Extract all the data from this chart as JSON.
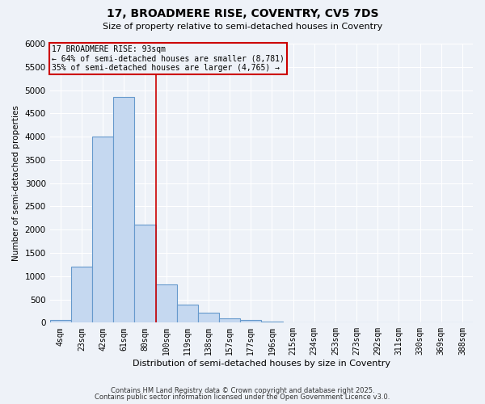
{
  "title1": "17, BROADMERE RISE, COVENTRY, CV5 7DS",
  "title2": "Size of property relative to semi-detached houses in Coventry",
  "xlabel": "Distribution of semi-detached houses by size in Coventry",
  "ylabel": "Number of semi-detached properties",
  "bar_labels": [
    "4sqm",
    "23sqm",
    "42sqm",
    "61sqm",
    "80sqm",
    "100sqm",
    "119sqm",
    "138sqm",
    "157sqm",
    "177sqm",
    "196sqm",
    "215sqm",
    "234sqm",
    "253sqm",
    "273sqm",
    "292sqm",
    "311sqm",
    "330sqm",
    "369sqm",
    "388sqm"
  ],
  "bar_values": [
    60,
    1200,
    4000,
    4850,
    2100,
    820,
    380,
    220,
    100,
    60,
    20,
    10,
    5,
    2,
    2,
    1,
    1,
    0,
    0,
    0
  ],
  "bar_color": "#c5d8f0",
  "bar_edgecolor": "#6699cc",
  "ylim": [
    0,
    6000
  ],
  "yticks": [
    0,
    500,
    1000,
    1500,
    2000,
    2500,
    3000,
    3500,
    4000,
    4500,
    5000,
    5500,
    6000
  ],
  "property_line_color": "#cc0000",
  "annotation_title": "17 BROADMERE RISE: 93sqm",
  "annotation_line1": "← 64% of semi-detached houses are smaller (8,781)",
  "annotation_line2": "35% of semi-detached houses are larger (4,765) →",
  "annotation_box_color": "#cc0000",
  "footer1": "Contains HM Land Registry data © Crown copyright and database right 2025.",
  "footer2": "Contains public sector information licensed under the Open Government Licence v3.0.",
  "background_color": "#eef2f8",
  "grid_color": "#ffffff"
}
